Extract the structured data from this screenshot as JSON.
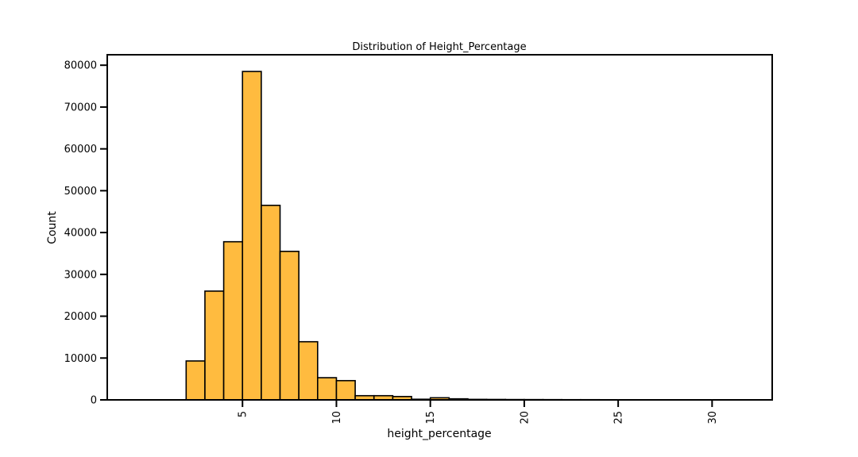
{
  "chart_data": {
    "type": "bar",
    "title": "Distribution of Height_Percentage",
    "xlabel": "height_percentage",
    "ylabel": "Count",
    "bin_width": 1,
    "bin_start": 2,
    "values": [
      9300,
      26000,
      37800,
      78500,
      46500,
      35500,
      13900,
      5300,
      4600,
      1000,
      1000,
      800,
      150,
      500,
      250,
      120,
      100,
      80,
      70,
      60,
      50,
      50,
      40,
      40,
      30,
      30,
      25,
      25,
      20,
      20
    ],
    "xlim": [
      -2.2,
      33.2
    ],
    "ylim": [
      0,
      82500
    ],
    "xticks": [
      5,
      10,
      15,
      20,
      25,
      30
    ],
    "yticks": [
      0,
      10000,
      20000,
      30000,
      40000,
      50000,
      60000,
      70000,
      80000
    ],
    "bar_color": "#FFBB3F",
    "edge_color": "#000000",
    "grid": false,
    "legend": false
  }
}
